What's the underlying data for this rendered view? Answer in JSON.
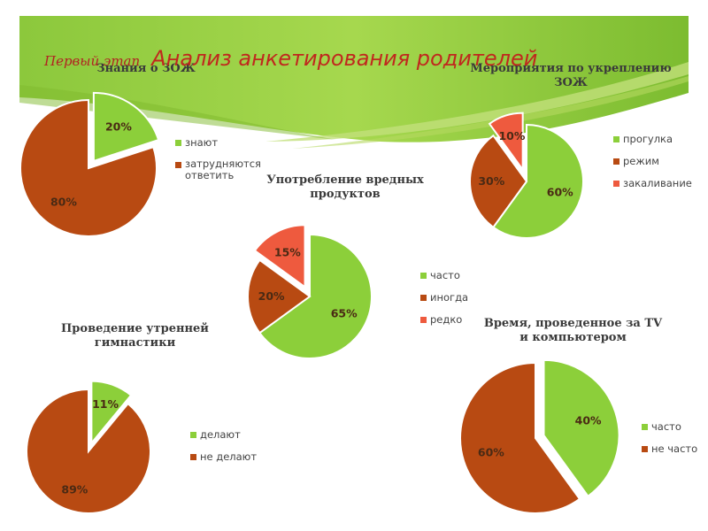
{
  "title": {
    "prefix": "Первый этап",
    "main": "Анализ  анкетирования родителей"
  },
  "colors": {
    "green": "#8ccf3a",
    "brown": "#b84a12",
    "red": "#ee5a3e",
    "bg_green": "#9fd04a"
  },
  "chart_data": [
    {
      "type": "pie",
      "title": "Знания о ЗОЖ",
      "categories": [
        "знают",
        "затрудняются ответить"
      ],
      "values": [
        20,
        80
      ],
      "labels": [
        "20%",
        "80%"
      ],
      "colors": [
        "#8ccf3a",
        "#b84a12"
      ],
      "legend_position": "right"
    },
    {
      "type": "pie",
      "title": "Мероприятия по укреплению ЗОЖ",
      "categories": [
        "прогулка",
        "режим",
        "закаливание"
      ],
      "values": [
        60,
        30,
        10
      ],
      "labels": [
        "60%",
        "30%",
        "10%"
      ],
      "colors": [
        "#8ccf3a",
        "#b84a12",
        "#ee5a3e"
      ],
      "legend_position": "right"
    },
    {
      "type": "pie",
      "title": "Употребление вредных продуктов",
      "categories": [
        "часто",
        "иногда",
        "редко"
      ],
      "values": [
        65,
        20,
        15
      ],
      "labels": [
        "65%",
        "20%",
        "15%"
      ],
      "colors": [
        "#8ccf3a",
        "#b84a12",
        "#ee5a3e"
      ],
      "legend_position": "right"
    },
    {
      "type": "pie",
      "title": "Проведение утренней гимнастики",
      "categories": [
        "делают",
        "не делают"
      ],
      "values": [
        11,
        89
      ],
      "labels": [
        "11%",
        "89%"
      ],
      "colors": [
        "#8ccf3a",
        "#b84a12"
      ],
      "legend_position": "right"
    },
    {
      "type": "pie",
      "title": "Время, проведенное за TV и компьютером",
      "categories": [
        "часто",
        "не часто"
      ],
      "values": [
        40,
        60
      ],
      "labels": [
        "40%",
        "60%"
      ],
      "colors": [
        "#8ccf3a",
        "#b84a12"
      ],
      "legend_position": "right"
    }
  ]
}
